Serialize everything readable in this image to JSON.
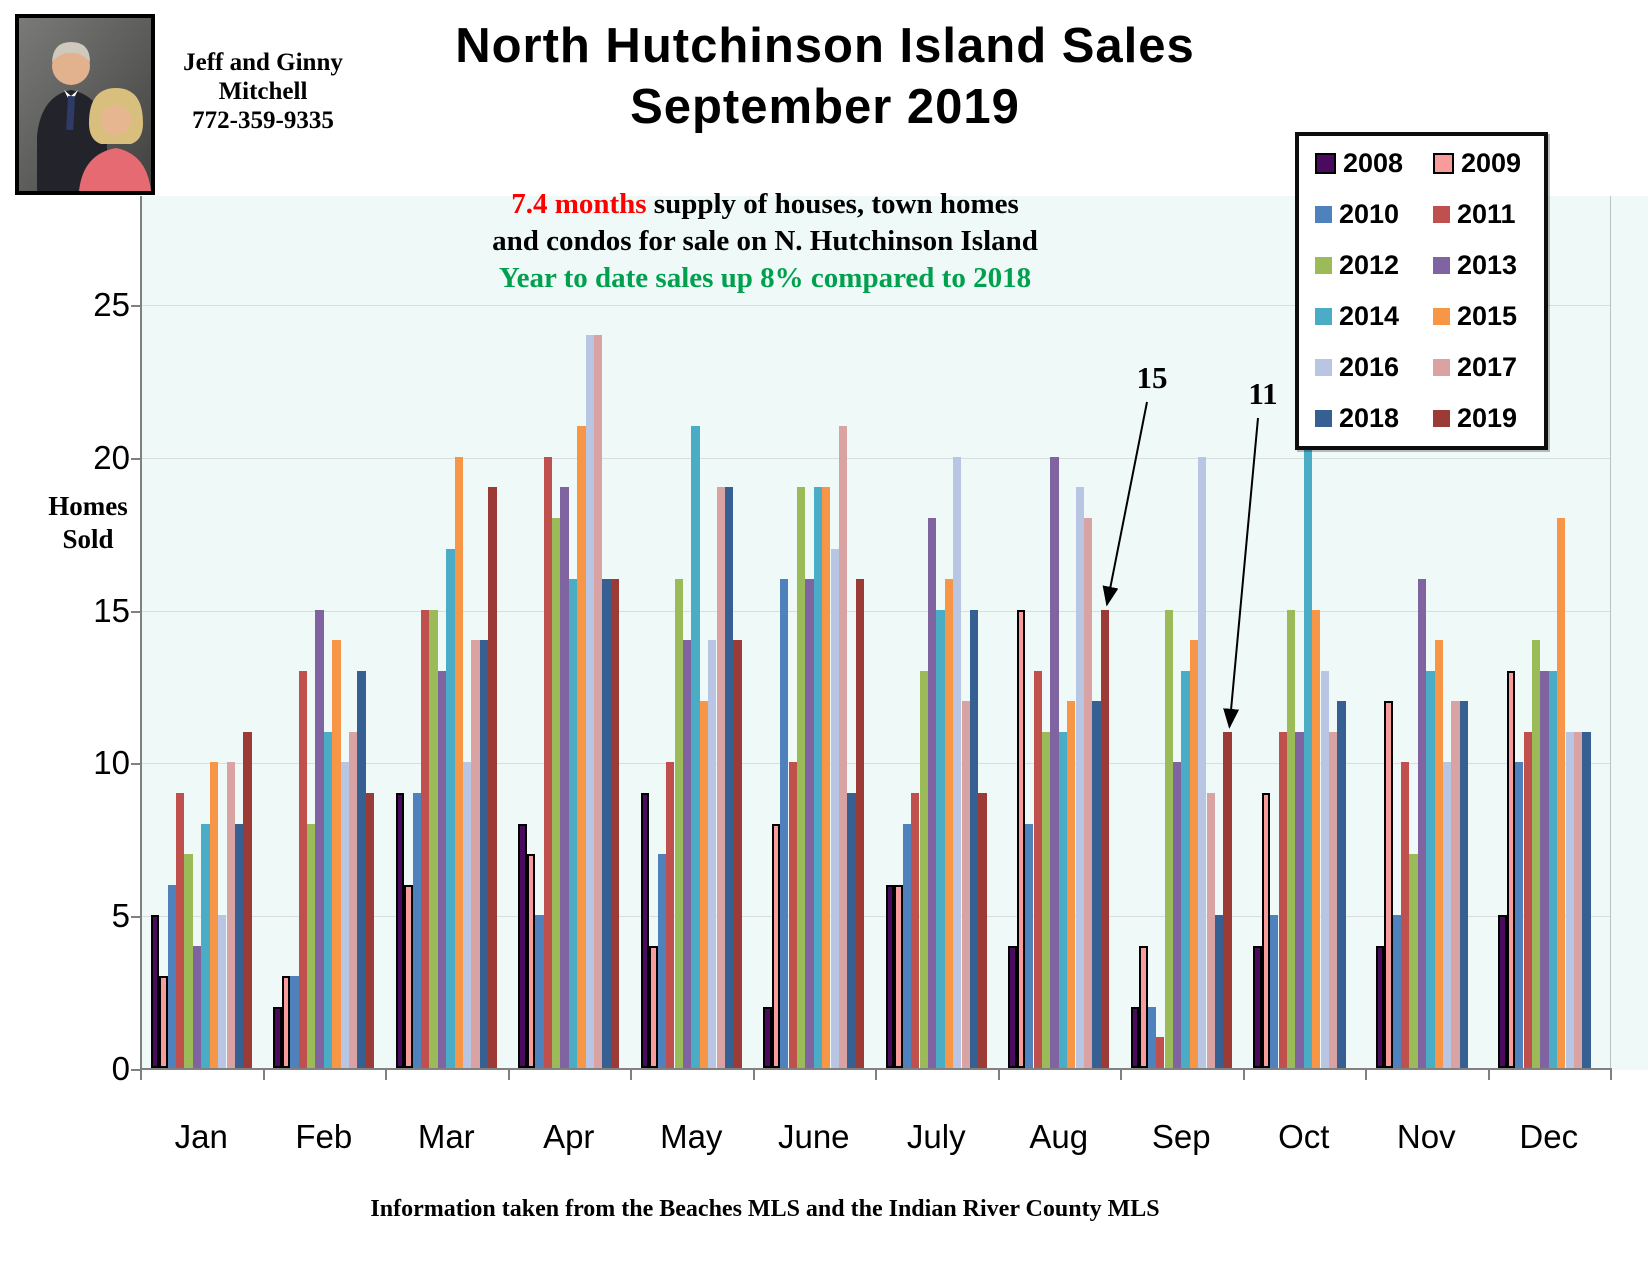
{
  "agent": {
    "name_line1": "Jeff and Ginny",
    "name_line2": "Mitchell",
    "phone": "772-359-9335"
  },
  "title": {
    "line1": "North Hutchinson Island Sales",
    "line2": "September 2019"
  },
  "subtitle": {
    "highlight": "7.4 months",
    "rest1": " supply of houses, town homes",
    "line2": "and condos for sale on N. Hutchinson Island",
    "line3": "Year to date sales up 8% compared to 2018",
    "highlight_color": "#FF0000",
    "line3_color": "#00A14E"
  },
  "y_axis": {
    "label_line1": "Homes",
    "label_line2": "Sold",
    "ticks": [
      0,
      5,
      10,
      15,
      20,
      25
    ]
  },
  "footer": "Information taken from the Beaches MLS and the Indian River County MLS",
  "annotations": [
    {
      "text": "15",
      "month": "Aug",
      "series": "2019"
    },
    {
      "text": "11",
      "month": "Sep",
      "series": "2019"
    }
  ],
  "chart_data": {
    "type": "bar",
    "title": "North Hutchinson Island Sales September 2019",
    "ylabel": "Homes Sold",
    "ylim": [
      0,
      25
    ],
    "grid": true,
    "legend_position": "top-right",
    "plot_bg": "#EFF9F8",
    "categories": [
      "Jan",
      "Feb",
      "Mar",
      "Apr",
      "May",
      "June",
      "July",
      "Aug",
      "Sep",
      "Oct",
      "Nov",
      "Dec"
    ],
    "series": [
      {
        "name": "2008",
        "color": "#4A0A5E",
        "outline": "#000000",
        "values": [
          5,
          2,
          9,
          8,
          9,
          2,
          6,
          4,
          2,
          4,
          4,
          5
        ]
      },
      {
        "name": "2009",
        "color": "#F79C9B",
        "outline": "#000000",
        "values": [
          3,
          3,
          6,
          7,
          4,
          8,
          6,
          15,
          4,
          9,
          12,
          13
        ]
      },
      {
        "name": "2010",
        "color": "#4F81BD",
        "values": [
          6,
          3,
          9,
          5,
          7,
          16,
          8,
          8,
          2,
          5,
          5,
          10
        ]
      },
      {
        "name": "2011",
        "color": "#C0504D",
        "values": [
          9,
          13,
          15,
          20,
          10,
          10,
          9,
          13,
          1,
          11,
          10,
          11
        ]
      },
      {
        "name": "2012",
        "color": "#9BBB59",
        "values": [
          7,
          8,
          15,
          18,
          16,
          19,
          13,
          11,
          15,
          15,
          7,
          14
        ]
      },
      {
        "name": "2013",
        "color": "#8064A2",
        "values": [
          4,
          15,
          13,
          19,
          14,
          16,
          18,
          20,
          10,
          11,
          16,
          13
        ]
      },
      {
        "name": "2014",
        "color": "#4BACC6",
        "values": [
          8,
          11,
          17,
          16,
          21,
          19,
          15,
          11,
          13,
          27,
          13,
          13
        ]
      },
      {
        "name": "2015",
        "color": "#F79646",
        "values": [
          10,
          14,
          20,
          21,
          12,
          19,
          16,
          12,
          14,
          15,
          14,
          18
        ]
      },
      {
        "name": "2016",
        "color": "#B9C6E3",
        "values": [
          5,
          10,
          10,
          24,
          14,
          17,
          20,
          19,
          20,
          13,
          10,
          11
        ]
      },
      {
        "name": "2017",
        "color": "#D8A3A2",
        "values": [
          10,
          11,
          14,
          24,
          19,
          21,
          12,
          18,
          9,
          11,
          12,
          11
        ]
      },
      {
        "name": "2018",
        "color": "#376092",
        "values": [
          8,
          13,
          14,
          16,
          19,
          9,
          15,
          12,
          5,
          12,
          12,
          11
        ]
      },
      {
        "name": "2019",
        "color": "#9C3A35",
        "values": [
          11,
          9,
          19,
          16,
          14,
          16,
          9,
          15,
          11,
          null,
          null,
          null
        ]
      }
    ]
  }
}
